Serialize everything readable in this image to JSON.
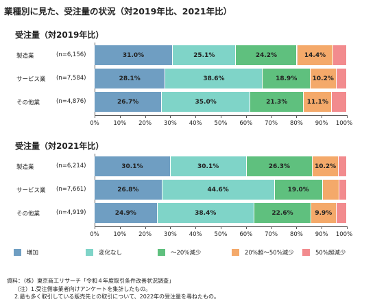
{
  "main_title": "業種別に見た、受注量の状況（対2019年比、2021年比）",
  "chart_data": [
    {
      "type": "bar",
      "orientation": "horizontal-stacked-100",
      "title": "受注量（対2019年比）",
      "categories": [
        "製造業",
        "サービス業",
        "その他業"
      ],
      "sample_sizes": [
        "(n=6,156)",
        "(n=7,584)",
        "(n=4,876)"
      ],
      "series": [
        {
          "name": "増加",
          "values": [
            31.0,
            28.1,
            26.7
          ],
          "labels": [
            "31.0%",
            "28.1%",
            "26.7%"
          ]
        },
        {
          "name": "変化なし",
          "values": [
            25.1,
            38.6,
            35.0
          ],
          "labels": [
            "25.1%",
            "38.6%",
            "35.0%"
          ]
        },
        {
          "name": "～20%減少",
          "values": [
            24.2,
            18.9,
            21.3
          ],
          "labels": [
            "24.2%",
            "18.9%",
            "21.3%"
          ]
        },
        {
          "name": "20%超～50%減少",
          "values": [
            14.4,
            10.2,
            11.1
          ],
          "labels": [
            "14.4%",
            "10.2%",
            "11.1%"
          ]
        },
        {
          "name": "50%超減少",
          "values": [
            5.3,
            4.2,
            5.9
          ],
          "labels": [
            "",
            "",
            ""
          ]
        }
      ],
      "xlim": [
        0,
        100
      ],
      "ticks": [
        "0%",
        "10%",
        "20%",
        "30%",
        "40%",
        "50%",
        "60%",
        "70%",
        "80%",
        "90%",
        "100%"
      ]
    },
    {
      "type": "bar",
      "orientation": "horizontal-stacked-100",
      "title": "受注量（対2021年比）",
      "categories": [
        "製造業",
        "サービス業",
        "その他業"
      ],
      "sample_sizes": [
        "(n=6,214)",
        "(n=7,661)",
        "(n=4,919)"
      ],
      "series": [
        {
          "name": "増加",
          "values": [
            30.1,
            26.8,
            24.9
          ],
          "labels": [
            "30.1%",
            "26.8%",
            "24.9%"
          ]
        },
        {
          "name": "変化なし",
          "values": [
            30.1,
            44.6,
            38.4
          ],
          "labels": [
            "30.1%",
            "44.6%",
            "38.4%"
          ]
        },
        {
          "name": "～20%減少",
          "values": [
            26.3,
            19.0,
            22.6
          ],
          "labels": [
            "26.3%",
            "19.0%",
            "22.6%"
          ]
        },
        {
          "name": "20%超～50%減少",
          "values": [
            10.2,
            6.5,
            9.9
          ],
          "labels": [
            "10.2%",
            "",
            "9.9%"
          ]
        },
        {
          "name": "50%超減少",
          "values": [
            3.3,
            3.1,
            4.2
          ],
          "labels": [
            "",
            "",
            ""
          ]
        }
      ],
      "xlim": [
        0,
        100
      ],
      "ticks": [
        "0%",
        "10%",
        "20%",
        "30%",
        "40%",
        "50%",
        "60%",
        "70%",
        "80%",
        "90%",
        "100%"
      ]
    }
  ],
  "colors": [
    "#6f9ec2",
    "#7fd4c8",
    "#5fc07e",
    "#f4a96a",
    "#f28b8e"
  ],
  "legend": [
    "増加",
    "変化なし",
    "～20%減少",
    "20%超～50%減少",
    "50%超減少"
  ],
  "notes": [
    "資料：（株）東京商工リサーチ「令和４年度取引条件改善状況調査」",
    "（注）1.受注側事業者向けアンケートを集計したもの。",
    "2.最も多く取引している販売先との取引について、2022年の受注量を尋ねたもの。"
  ]
}
